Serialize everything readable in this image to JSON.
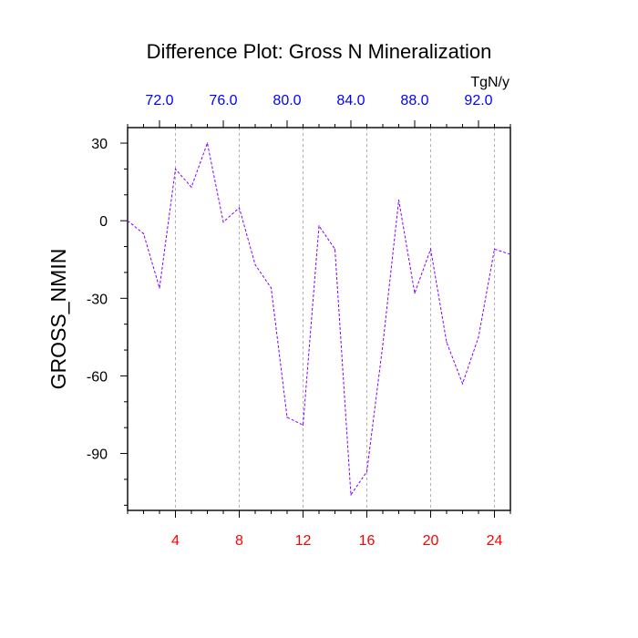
{
  "chart_data": {
    "type": "line",
    "title": "Difference Plot: Gross N Mineralization",
    "xlabel": "",
    "ylabel": "GROSS_NMIN",
    "top_axis_unit": "TgN/y",
    "x": [
      1,
      2,
      3,
      4,
      5,
      6,
      7,
      8,
      9,
      10,
      11,
      12,
      13,
      14,
      15,
      16,
      17,
      18,
      19,
      20,
      21,
      22,
      23,
      24,
      25
    ],
    "series": [
      {
        "values": [
          0,
          -5,
          -26,
          20,
          13,
          30,
          -0.5,
          5,
          -17,
          -26,
          -76,
          -79,
          -2,
          -11,
          -106,
          -97,
          -48,
          8,
          -28,
          -11,
          -47,
          -63,
          -45,
          -11,
          -13
        ]
      }
    ],
    "xlim": [
      1,
      25
    ],
    "ylim": [
      -112,
      36
    ],
    "bottom_ticks": [
      4,
      8,
      12,
      16,
      20,
      24
    ],
    "bottom_tick_labels": [
      "4",
      "8",
      "12",
      "16",
      "20",
      "24"
    ],
    "top_ticks_at_x": [
      3,
      7,
      11,
      15,
      19,
      23
    ],
    "top_tick_labels": [
      "72.0",
      "76.0",
      "80.0",
      "84.0",
      "88.0",
      "92.0"
    ],
    "y_ticks": [
      30,
      0,
      -30,
      -60,
      -90
    ],
    "y_tick_labels": [
      "30",
      "0",
      "-30",
      "-60",
      "-90"
    ],
    "grid": "vertical dashed at bottom major ticks",
    "colors": {
      "line": "#8000ff",
      "bottom_tick_labels": "#ff0000",
      "top_tick_labels": "#0000ff",
      "axes": "#000000",
      "grid": "#b0b0b0"
    }
  }
}
